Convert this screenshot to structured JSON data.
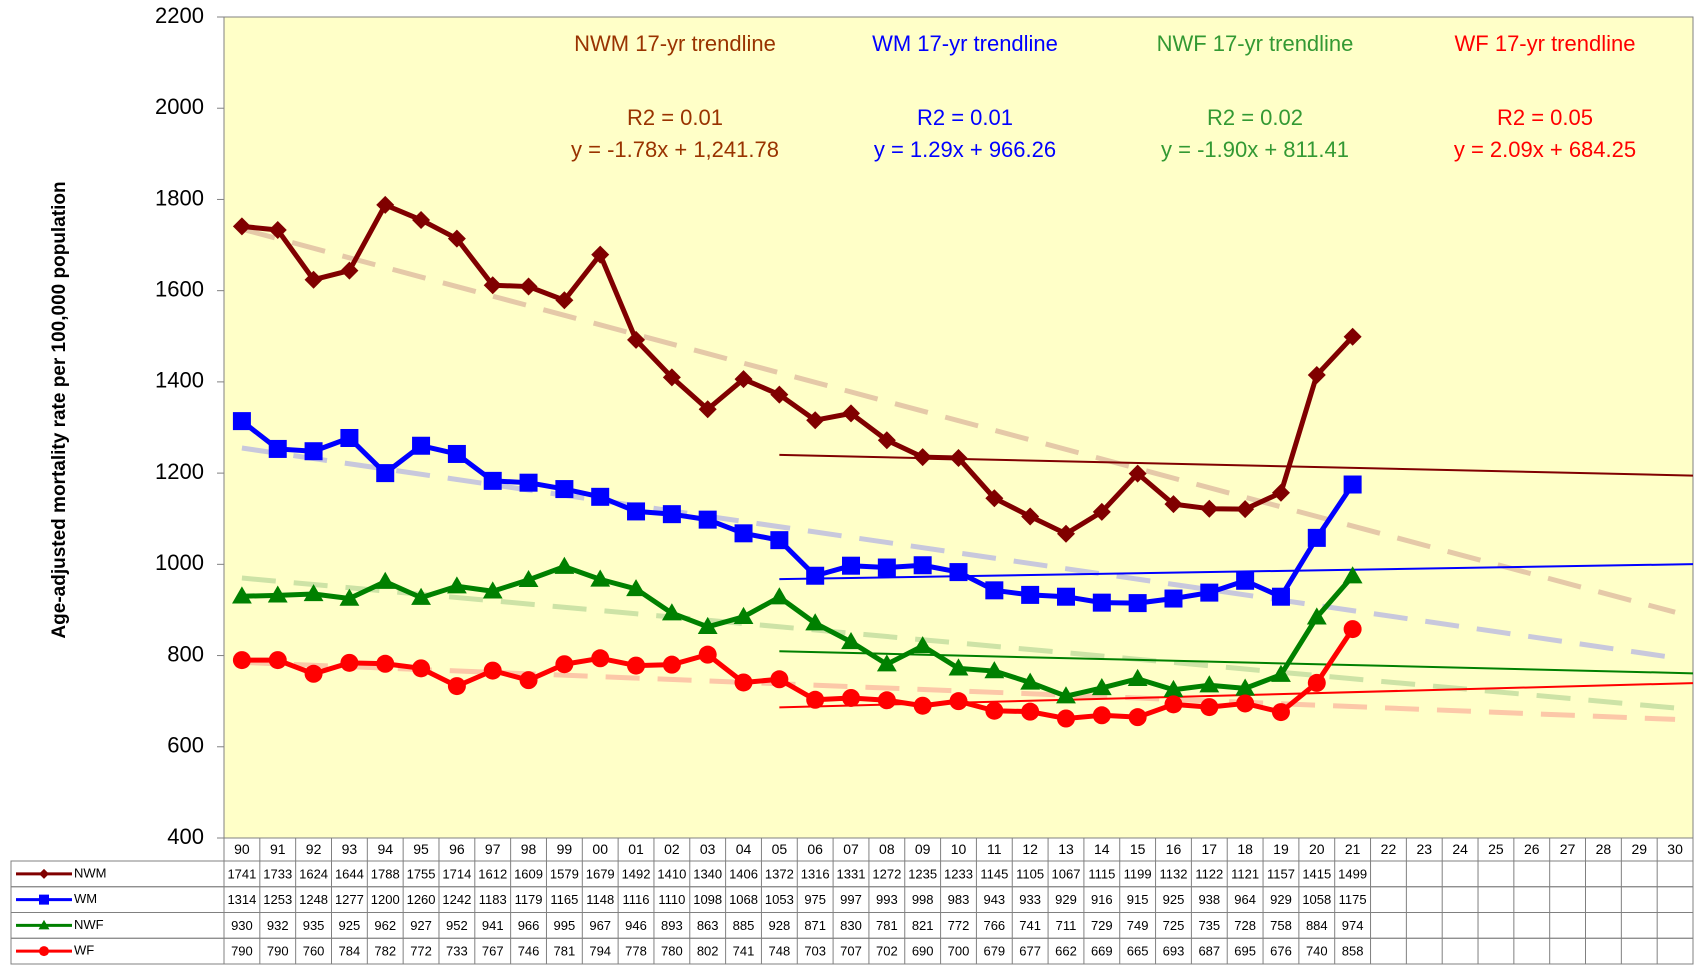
{
  "chart_data": {
    "type": "line",
    "y_axis_label": "Age-adjusted mortality rate per 100,000 population",
    "categories": [
      "90",
      "91",
      "92",
      "93",
      "94",
      "95",
      "96",
      "97",
      "98",
      "99",
      "00",
      "01",
      "02",
      "03",
      "04",
      "05",
      "06",
      "07",
      "08",
      "09",
      "10",
      "11",
      "12",
      "13",
      "14",
      "15",
      "16",
      "17",
      "18",
      "19",
      "20",
      "21",
      "22",
      "23",
      "24",
      "25",
      "26",
      "27",
      "28",
      "29",
      "30"
    ],
    "ylim": [
      400,
      2200
    ],
    "yticks": [
      400,
      600,
      800,
      1000,
      1200,
      1400,
      1600,
      1800,
      2000,
      2200
    ],
    "series": [
      {
        "name": "NWM",
        "color": "#800000",
        "marker": "diamond",
        "trend_color": "#e5c9a8",
        "trend": [
          1735,
          895
        ],
        "values": [
          1741,
          1733,
          1624,
          1644,
          1788,
          1755,
          1714,
          1612,
          1609,
          1579,
          1679,
          1492,
          1410,
          1340,
          1406,
          1372,
          1316,
          1331,
          1272,
          1235,
          1233,
          1145,
          1105,
          1067,
          1115,
          1199,
          1132,
          1122,
          1121,
          1157,
          1415,
          1499,
          null,
          null,
          null,
          null,
          null,
          null,
          null,
          null,
          null
        ]
      },
      {
        "name": "WM",
        "color": "#0000ff",
        "marker": "square",
        "trend_color": "#c8c8dc",
        "trend": [
          1255,
          795
        ],
        "values": [
          1314,
          1253,
          1248,
          1277,
          1200,
          1260,
          1242,
          1183,
          1179,
          1165,
          1148,
          1116,
          1110,
          1098,
          1068,
          1053,
          975,
          997,
          993,
          998,
          983,
          943,
          933,
          929,
          916,
          915,
          925,
          938,
          964,
          929,
          1058,
          1175,
          null,
          null,
          null,
          null,
          null,
          null,
          null,
          null,
          null
        ]
      },
      {
        "name": "NWF",
        "color": "#008000",
        "marker": "triangle",
        "trend_color": "#cde3a6",
        "trend": [
          970,
          685
        ],
        "values": [
          930,
          932,
          935,
          925,
          962,
          927,
          952,
          941,
          966,
          995,
          967,
          946,
          893,
          863,
          885,
          928,
          871,
          830,
          781,
          821,
          772,
          766,
          741,
          711,
          729,
          749,
          725,
          735,
          728,
          758,
          884,
          974,
          null,
          null,
          null,
          null,
          null,
          null,
          null,
          null,
          null
        ]
      },
      {
        "name": "WF",
        "color": "#ff0000",
        "marker": "circle",
        "trend_color": "#fcc8a8",
        "trend": [
          785,
          660
        ],
        "values": [
          790,
          790,
          760,
          784,
          782,
          772,
          733,
          767,
          746,
          781,
          794,
          778,
          780,
          802,
          741,
          748,
          703,
          707,
          702,
          690,
          700,
          679,
          677,
          662,
          669,
          665,
          693,
          687,
          695,
          676,
          740,
          858,
          null,
          null,
          null,
          null,
          null,
          null,
          null,
          null,
          null
        ]
      }
    ],
    "trendlines": [
      {
        "title": "NWM 17-yr trendline",
        "r2": "R2 = 0.01",
        "equation": "y = -1.78x + 1,241.78",
        "slope": -1.78,
        "intercept": 1241.78,
        "color": "#993300",
        "line_color": "#800000"
      },
      {
        "title": "WM 17-yr trendline",
        "r2": "R2 = 0.01",
        "equation": "y = 1.29x + 966.26",
        "slope": 1.29,
        "intercept": 966.26,
        "color": "#0000ff",
        "line_color": "#0000ff"
      },
      {
        "title": "NWF 17-yr trendline",
        "r2": "R2 = 0.02",
        "equation": "y = -1.90x + 811.41",
        "slope": -1.9,
        "intercept": 811.41,
        "color": "#339933",
        "line_color": "#008000"
      },
      {
        "title": "WF 17-yr trendline",
        "r2": "R2 = 0.05",
        "equation": "y = 2.09x + 684.25",
        "slope": 2.09,
        "intercept": 684.25,
        "color": "#ff0000",
        "line_color": "#ff0000"
      }
    ]
  }
}
